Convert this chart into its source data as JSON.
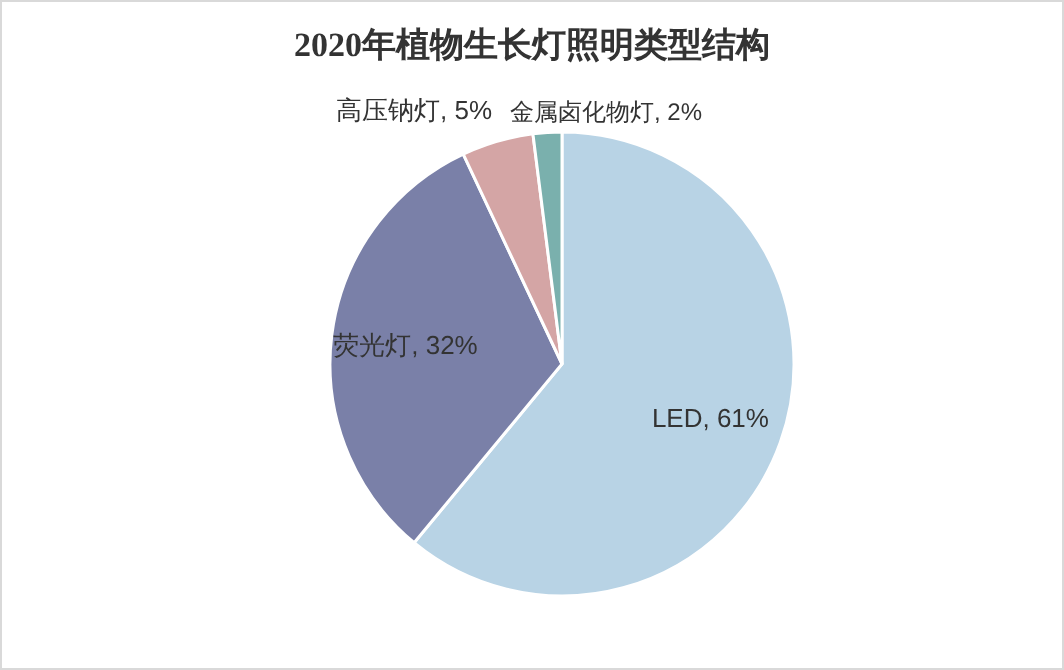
{
  "chart_data": {
    "type": "pie",
    "title": "2020年植物生长灯照明类型结构",
    "categories": [
      "LED",
      "荧光灯",
      "高压钠灯",
      "金属卤化物灯"
    ],
    "values": [
      61,
      32,
      5,
      2
    ],
    "value_labels": [
      "61%",
      "32%",
      "5%",
      "2%"
    ],
    "colors": [
      "#b8d3e5",
      "#7a80a8",
      "#d4a5a5",
      "#7ab0ad"
    ]
  }
}
